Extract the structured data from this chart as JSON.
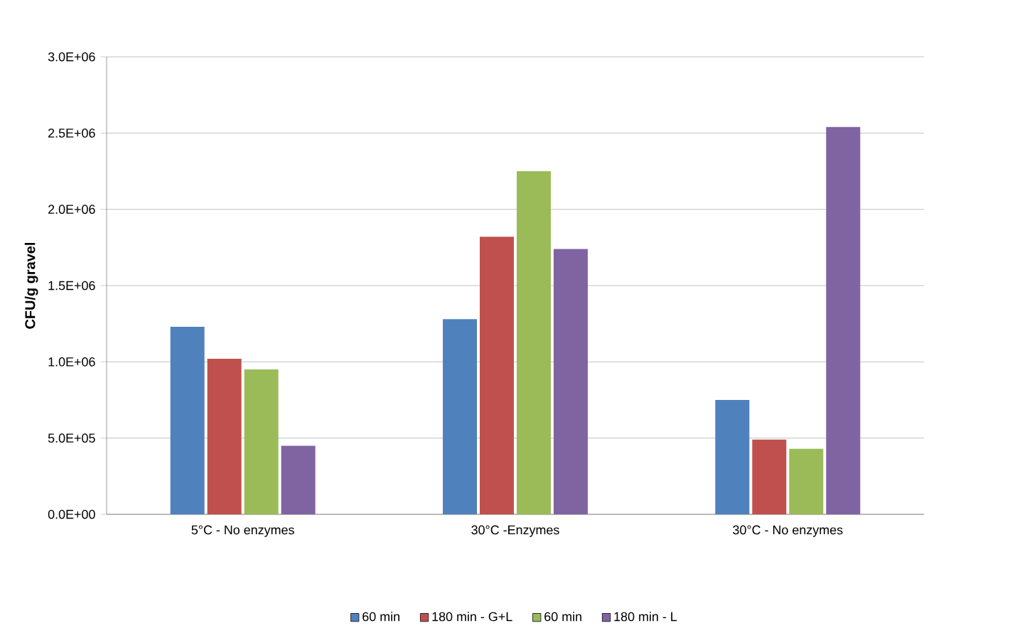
{
  "chart_data": {
    "type": "bar",
    "ylabel": "CFU/g gravel",
    "categories": [
      "5°C - No enzymes",
      "30°C -Enzymes",
      "30°C - No enzymes"
    ],
    "series": [
      {
        "name": "60 min",
        "color": "#4f81bd",
        "values": [
          1230000,
          1280000,
          750000
        ]
      },
      {
        "name": "180 min - G+L",
        "color": "#c0504d",
        "values": [
          1020000,
          1820000,
          490000
        ]
      },
      {
        "name": "60 min",
        "color": "#9bbb59",
        "values": [
          950000,
          2250000,
          430000
        ]
      },
      {
        "name": "180 min - L",
        "color": "#8064a2",
        "values": [
          450000,
          1740000,
          2540000
        ]
      }
    ],
    "ylim": [
      0,
      3000000
    ],
    "yticks": [
      {
        "value": 0,
        "label": "0.0E+00"
      },
      {
        "value": 500000,
        "label": "5.0E+05"
      },
      {
        "value": 1000000,
        "label": "1.0E+06"
      },
      {
        "value": 1500000,
        "label": "1.5E+06"
      },
      {
        "value": 2000000,
        "label": "2.0E+06"
      },
      {
        "value": 2500000,
        "label": "2.5E+06"
      },
      {
        "value": 3000000,
        "label": "3.0E+06"
      }
    ],
    "grid": "y",
    "legend": "bottom"
  }
}
